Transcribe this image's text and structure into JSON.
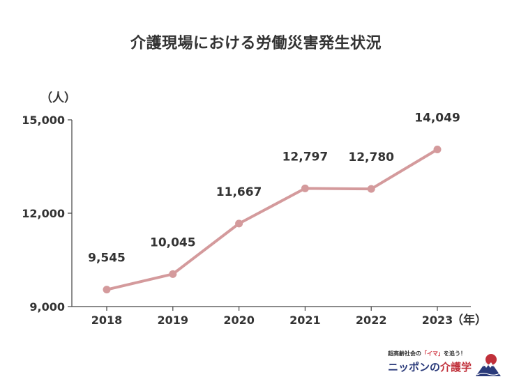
{
  "chart_data": {
    "type": "line",
    "title": "介護現場における労働災害発生状況",
    "y_unit_label": "（人）",
    "x_unit_label": "（年）",
    "categories": [
      "2018",
      "2019",
      "2020",
      "2021",
      "2022",
      "2023"
    ],
    "values": [
      9545,
      10045,
      11667,
      12797,
      12780,
      14049
    ],
    "data_labels": [
      "9,545",
      "10,045",
      "11,667",
      "12,797",
      "12,780",
      "14,049"
    ],
    "ylim": [
      9000,
      15000
    ],
    "yticks": [
      9000,
      12000,
      15000
    ],
    "ytick_labels": [
      "9,000",
      "12,000",
      "15,000"
    ],
    "grid": false,
    "line_color": "#d49a9c",
    "marker_color": "#d49a9c"
  },
  "brand": {
    "tagline_prefix": "超高齢社会の",
    "tagline_highlight": "「イマ」",
    "tagline_suffix": "を追う！",
    "name_part1": "ニッポンの",
    "name_part2": "介護学",
    "logo_icon": "mount-fuji-sun-icon",
    "accent": "#c0303a",
    "navy": "#2a3a7a"
  }
}
